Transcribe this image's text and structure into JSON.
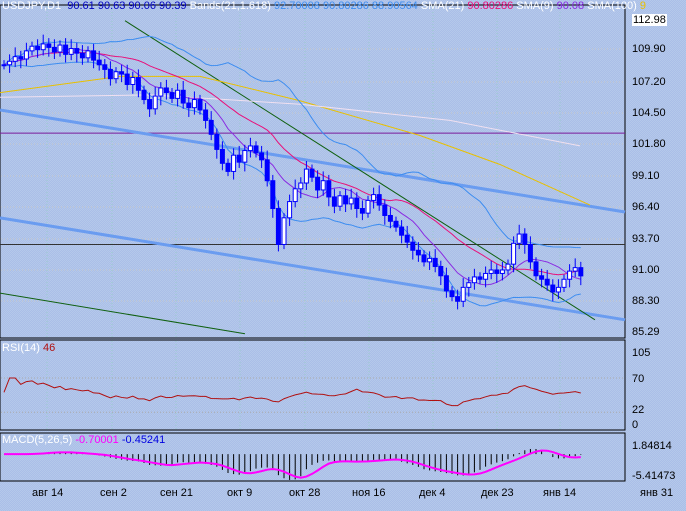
{
  "header": {
    "symbol": "USDJPY,D1",
    "open": "90.61",
    "high": "90.63",
    "low": "90.06",
    "close": "90.39",
    "bands_label": "Bands(21,1.618)",
    "bands_upper": "92.70008",
    "bands_mid": "90.80286",
    "bands_lower": "88.90564",
    "sma21_label": "SMA(21)",
    "sma21_value": "90.80286",
    "sma9_label": "SMA(9)",
    "sma9_value": "90.08",
    "sma100_label": "SMA(100)",
    "sma100_value": "9"
  },
  "price_axis": [
    "112.98",
    "109.90",
    "107.20",
    "104.50",
    "101.80",
    "99.10",
    "96.40",
    "93.70",
    "91.00",
    "88.30",
    "85.29"
  ],
  "rsi": {
    "label": "RSI(14)",
    "value": "46",
    "axis": [
      "105",
      "70",
      "22",
      "0"
    ]
  },
  "macd": {
    "label": "MACD(5,26,5)",
    "main": "-0.70001",
    "signal": "-0.45241",
    "axis": [
      "1.84814",
      "-5.41473"
    ]
  },
  "time_axis": [
    "авг 14",
    "сен 2",
    "сен 21",
    "окт 9",
    "окт 28",
    "ноя 16",
    "дек 4",
    "дек 23",
    "янв 14",
    "янв 31"
  ],
  "colors": {
    "bull": "#0000ff",
    "bear": "#0000ff",
    "bands": "#3d8df0",
    "sma21": "#e8107a",
    "sma9": "#8a2be2",
    "sma100": "#e8c000",
    "rsi": "#b01010",
    "macd": "#ff00ff"
  },
  "levels": {
    "purple": 102.7,
    "black": 93.1
  },
  "chart_data": {
    "type": "candlestick",
    "ylim": [
      85.29,
      112.98
    ],
    "close": [
      108.6,
      108.9,
      109.3,
      109.1,
      109.8,
      110.2,
      109.9,
      110.4,
      110.1,
      109.7,
      110.3,
      109.5,
      110.0,
      109.6,
      109.2,
      109.8,
      109.0,
      108.6,
      108.2,
      107.4,
      108.0,
      107.8,
      106.9,
      107.5,
      106.4,
      105.6,
      104.8,
      105.9,
      106.6,
      106.2,
      105.7,
      106.4,
      105.3,
      104.9,
      105.6,
      104.7,
      103.8,
      102.6,
      101.3,
      100.1,
      99.4,
      100.8,
      100.2,
      101.2,
      101.6,
      101.0,
      100.4,
      98.6,
      96.2,
      93.1,
      95.4,
      96.8,
      97.9,
      98.4,
      99.6,
      98.9,
      97.8,
      98.6,
      97.2,
      96.4,
      97.3,
      96.6,
      97.1,
      96.2,
      95.8,
      96.9,
      97.4,
      96.5,
      95.6,
      95.1,
      94.6,
      93.9,
      93.3,
      92.6,
      92.2,
      91.6,
      91.9,
      91.2,
      90.4,
      89.1,
      88.6,
      88.2,
      89.4,
      89.8,
      90.3,
      90.1,
      90.6,
      90.9,
      90.6,
      90.9,
      91.4,
      93.2,
      94.0,
      93.1,
      91.6,
      90.4,
      90.1,
      89.6,
      89.0,
      89.4,
      90.1,
      90.8,
      91.1,
      90.39
    ]
  }
}
